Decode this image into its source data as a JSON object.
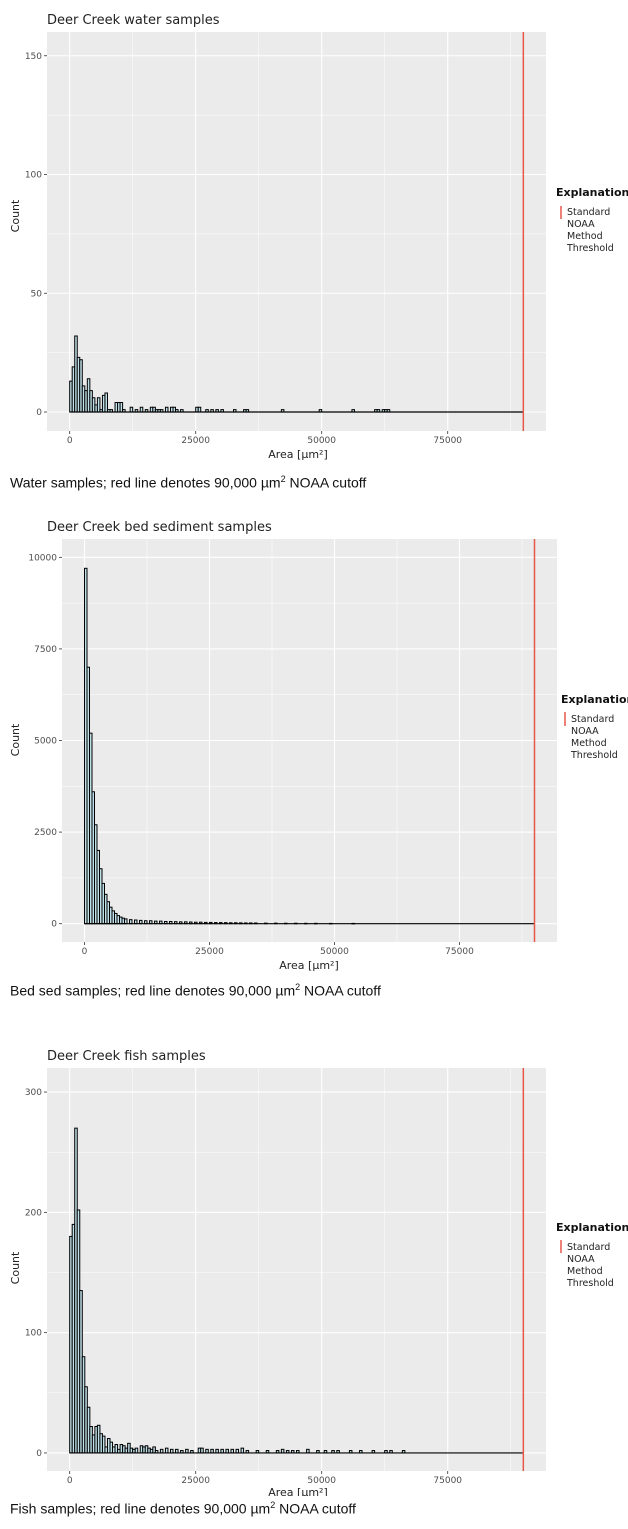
{
  "colors": {
    "panel": "#ebebeb",
    "grid": "#ffffff",
    "threshold": "#e8574a",
    "bar_fill": "#bfe0e8",
    "bar_stroke": "#000000"
  },
  "chart_data": [
    {
      "type": "bar",
      "title": "Deer Creek water samples",
      "xlabel": "Area [µm²]",
      "ylabel": "Count",
      "xlim": [
        -4500,
        94500
      ],
      "ylim": [
        -8,
        160
      ],
      "xticks": [
        0,
        25000,
        50000,
        75000
      ],
      "yticks": [
        0,
        50,
        100,
        150
      ],
      "xtick_labels": [
        "0",
        "25000",
        "50000",
        "75000"
      ],
      "ytick_labels": [
        "0",
        "50",
        "100",
        "150"
      ],
      "threshold": 90000,
      "legend": {
        "title": "Explanation",
        "label": [
          "Standard",
          "NOAA",
          "Method",
          "Threshold"
        ],
        "position": "right"
      },
      "bin_width": 500,
      "x": [
        0,
        500,
        1000,
        1500,
        2000,
        2500,
        3000,
        3500,
        4000,
        4500,
        5000,
        5500,
        6000,
        6500,
        7000,
        7500,
        8000,
        9000,
        9500,
        10000,
        10500,
        12000,
        13000,
        14000,
        15000,
        16000,
        16500,
        17000,
        17500,
        18000,
        19000,
        20000,
        20500,
        21000,
        22000,
        25000,
        25500,
        27000,
        28000,
        29000,
        30000,
        32500,
        34500,
        35000,
        42000,
        49500,
        56000,
        60500,
        61000,
        62000,
        62500,
        63000
      ],
      "values": [
        13,
        19,
        32,
        23,
        22,
        11,
        9,
        14,
        9,
        6,
        3,
        6,
        1,
        7,
        8,
        1,
        1,
        4,
        4,
        4,
        1,
        2,
        1,
        2,
        1,
        2,
        2,
        1,
        1,
        1,
        2,
        2,
        2,
        1,
        1,
        2,
        2,
        1,
        1,
        1,
        1,
        1,
        1,
        1,
        1,
        1,
        1,
        1,
        1,
        1,
        1,
        1
      ]
    },
    {
      "type": "bar",
      "title": "Deer Creek bed sediment samples",
      "xlabel": "Area [µm²]",
      "ylabel": "Count",
      "xlim": [
        -4500,
        94500
      ],
      "ylim": [
        -500,
        10500
      ],
      "xticks": [
        0,
        25000,
        50000,
        75000
      ],
      "yticks": [
        0,
        2500,
        5000,
        7500,
        10000
      ],
      "xtick_labels": [
        "0",
        "25000",
        "50000",
        "75000"
      ],
      "ytick_labels": [
        "0",
        "2500",
        "5000",
        "7500",
        "10000"
      ],
      "threshold": 90000,
      "legend": {
        "title": "Explanation",
        "label": [
          "Standard",
          "NOAA",
          "Method",
          "Threshold"
        ],
        "position": "right"
      },
      "bin_width": 500,
      "x": [
        0,
        500,
        1000,
        1500,
        2000,
        2500,
        3000,
        3500,
        4000,
        4500,
        5000,
        5500,
        6000,
        6500,
        7000,
        7500,
        8000,
        9000,
        10000,
        11000,
        12000,
        13000,
        14000,
        15000,
        16000,
        17000,
        18000,
        19000,
        20000,
        21000,
        22000,
        23000,
        24000,
        25000,
        26000,
        27000,
        28000,
        29000,
        30000,
        31000,
        32000,
        33000,
        34000,
        36000,
        38000,
        40000,
        42000,
        44000,
        46000,
        49000,
        53500
      ],
      "values": [
        9700,
        7000,
        5200,
        3600,
        2700,
        2000,
        1500,
        1100,
        800,
        600,
        450,
        350,
        280,
        220,
        180,
        150,
        130,
        110,
        100,
        90,
        80,
        80,
        70,
        70,
        60,
        60,
        55,
        50,
        50,
        45,
        40,
        40,
        35,
        35,
        30,
        30,
        28,
        25,
        25,
        22,
        20,
        20,
        18,
        15,
        15,
        12,
        12,
        10,
        10,
        8,
        8
      ]
    },
    {
      "type": "bar",
      "title": "Deer Creek fish samples",
      "xlabel": "Area [µm²]",
      "ylabel": "Count",
      "xlim": [
        -4500,
        94500
      ],
      "ylim": [
        -15,
        320
      ],
      "xticks": [
        0,
        25000,
        50000,
        75000
      ],
      "yticks": [
        0,
        100,
        200,
        300
      ],
      "xtick_labels": [
        "0",
        "25000",
        "50000",
        "75000"
      ],
      "ytick_labels": [
        "0",
        "100",
        "200",
        "300"
      ],
      "threshold": 90000,
      "legend": {
        "title": "Explanation",
        "label": [
          "Standard",
          "NOAA",
          "Method",
          "Threshold"
        ],
        "position": "right"
      },
      "bin_width": 500,
      "x": [
        0,
        500,
        1000,
        1500,
        2000,
        2500,
        3000,
        3500,
        4000,
        4500,
        5000,
        5500,
        6000,
        6500,
        7000,
        7500,
        8000,
        8500,
        9000,
        9500,
        10000,
        10500,
        11000,
        11500,
        12000,
        12500,
        13000,
        14000,
        14500,
        15000,
        15500,
        16000,
        16500,
        17000,
        18000,
        19000,
        20000,
        21000,
        22000,
        23000,
        24000,
        25500,
        26000,
        27000,
        28000,
        29000,
        30000,
        31000,
        32000,
        33000,
        34000,
        35000,
        37000,
        39000,
        41000,
        42000,
        43000,
        44000,
        45000,
        47000,
        49000,
        50500,
        52000,
        53000,
        55500,
        57500,
        60000,
        62500,
        63500,
        66000
      ],
      "values": [
        180,
        190,
        270,
        202,
        135,
        80,
        55,
        38,
        22,
        15,
        22,
        23,
        16,
        14,
        5,
        12,
        9,
        5,
        7,
        3,
        7,
        6,
        4,
        8,
        4,
        3,
        4,
        6,
        5,
        6,
        4,
        3,
        5,
        2,
        3,
        4,
        3,
        3,
        2,
        3,
        2,
        4,
        4,
        3,
        3,
        3,
        3,
        3,
        3,
        3,
        4,
        2,
        2,
        2,
        2,
        3,
        2,
        2,
        2,
        3,
        2,
        2,
        2,
        2,
        2,
        2,
        2,
        2,
        2,
        2
      ]
    }
  ],
  "captions": [
    {
      "before": "Water samples; red line denotes 90,000 µm",
      "sup": "2",
      "after": " NOAA cutoff"
    },
    {
      "before": "Bed sed samples; red line denotes 90,000 µm",
      "sup": "2",
      "after": " NOAA cutoff"
    },
    {
      "before": "Fish samples; red line denotes 90,000 µm",
      "sup": "2",
      "after": " NOAA cutoff"
    }
  ]
}
